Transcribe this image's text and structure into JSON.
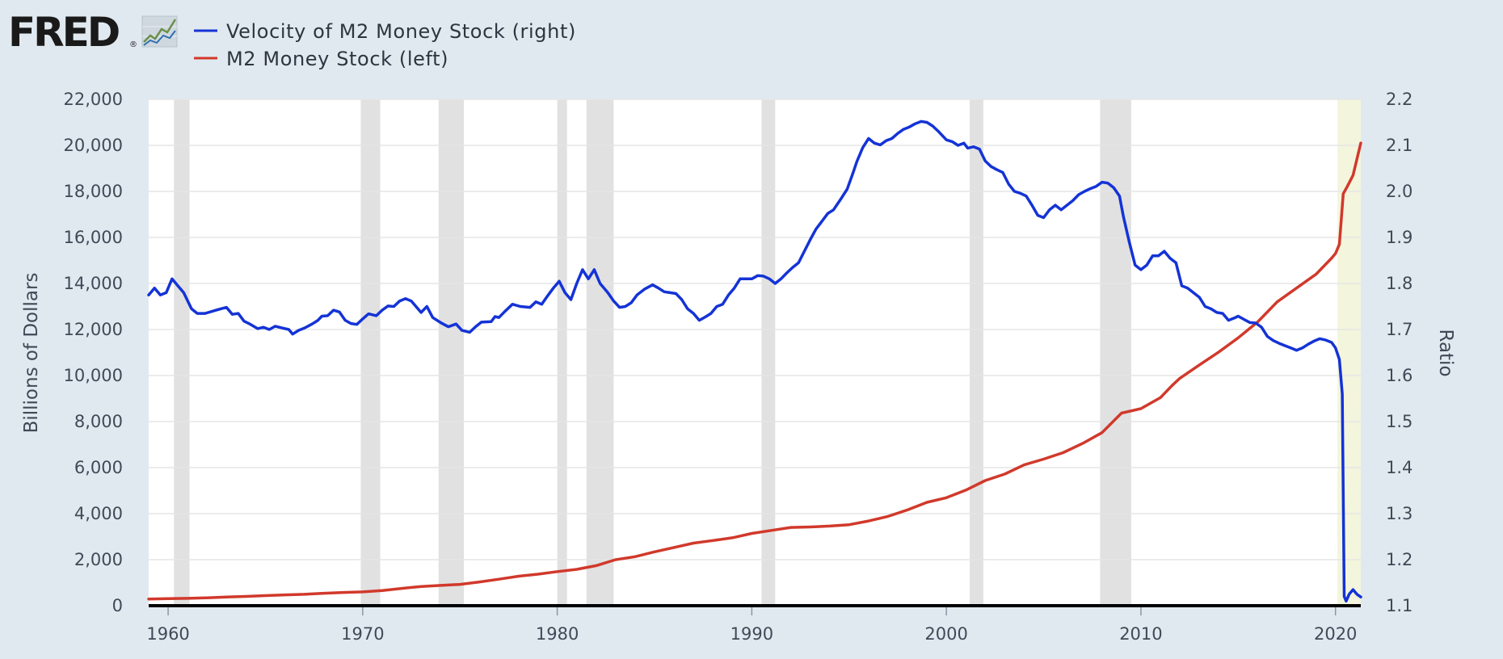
{
  "logo": {
    "text": "FRED",
    "mark": "®",
    "icon": "line-graph-icon"
  },
  "colors": {
    "background": "#e1e9f0",
    "plot_background": "#ffffff",
    "grid": "#e6e6e6",
    "recession": "#e1e1e1",
    "highlight": "#f3f5dc",
    "velocity": "#1433d6",
    "m2": "#d1392b",
    "text": "#3f4a57"
  },
  "chart_data": {
    "type": "line",
    "x_range": [
      1959,
      2021.3
    ],
    "x_ticks": [
      1960,
      1970,
      1980,
      1990,
      2000,
      2010,
      2020
    ],
    "left_axis": {
      "label": "Billions of Dollars",
      "range": [
        0,
        22000
      ],
      "ticks": [
        0,
        2000,
        4000,
        6000,
        8000,
        10000,
        12000,
        14000,
        16000,
        18000,
        20000,
        22000
      ]
    },
    "right_axis": {
      "label": "Ratio",
      "range": [
        1.1,
        2.2
      ],
      "ticks": [
        1.1,
        1.2,
        1.3,
        1.4,
        1.5,
        1.6,
        1.7,
        1.8,
        1.9,
        2.0,
        2.1,
        2.2
      ]
    },
    "legend": {
      "placement": "top-left"
    },
    "recessions": [
      [
        1960.3,
        1961.1
      ],
      [
        1969.9,
        1970.9
      ],
      [
        1973.9,
        1975.2
      ],
      [
        1980.0,
        1980.5
      ],
      [
        1981.5,
        1982.9
      ],
      [
        1990.5,
        1991.2
      ],
      [
        2001.2,
        2001.9
      ],
      [
        2007.9,
        2009.5
      ]
    ],
    "highlight_region": [
      2020.1,
      2021.3
    ],
    "series": [
      {
        "name": "Velocity of M2 Money Stock (right)",
        "axis": "right",
        "points": [
          [
            1959.0,
            1.775
          ],
          [
            1959.3,
            1.79
          ],
          [
            1959.6,
            1.775
          ],
          [
            1959.9,
            1.78
          ],
          [
            1960.2,
            1.81
          ],
          [
            1960.5,
            1.795
          ],
          [
            1960.8,
            1.78
          ],
          [
            1961.2,
            1.745
          ],
          [
            1961.5,
            1.735
          ],
          [
            1961.9,
            1.735
          ],
          [
            1962.3,
            1.74
          ],
          [
            1962.7,
            1.745
          ],
          [
            1963.0,
            1.748
          ],
          [
            1963.3,
            1.733
          ],
          [
            1963.6,
            1.735
          ],
          [
            1963.9,
            1.718
          ],
          [
            1964.2,
            1.712
          ],
          [
            1964.6,
            1.702
          ],
          [
            1964.9,
            1.705
          ],
          [
            1965.2,
            1.7
          ],
          [
            1965.5,
            1.707
          ],
          [
            1965.9,
            1.703
          ],
          [
            1966.2,
            1.7
          ],
          [
            1966.4,
            1.69
          ],
          [
            1966.7,
            1.698
          ],
          [
            1967.0,
            1.703
          ],
          [
            1967.4,
            1.712
          ],
          [
            1967.7,
            1.72
          ],
          [
            1967.9,
            1.729
          ],
          [
            1968.2,
            1.73
          ],
          [
            1968.5,
            1.742
          ],
          [
            1968.8,
            1.738
          ],
          [
            1969.1,
            1.72
          ],
          [
            1969.4,
            1.713
          ],
          [
            1969.7,
            1.711
          ],
          [
            1970.0,
            1.723
          ],
          [
            1970.3,
            1.734
          ],
          [
            1970.7,
            1.73
          ],
          [
            1971.0,
            1.742
          ],
          [
            1971.3,
            1.751
          ],
          [
            1971.6,
            1.75
          ],
          [
            1971.9,
            1.762
          ],
          [
            1972.2,
            1.767
          ],
          [
            1972.5,
            1.762
          ],
          [
            1973.0,
            1.737
          ],
          [
            1973.3,
            1.75
          ],
          [
            1973.6,
            1.726
          ],
          [
            1974.0,
            1.715
          ],
          [
            1974.4,
            1.706
          ],
          [
            1974.8,
            1.712
          ],
          [
            1975.1,
            1.698
          ],
          [
            1975.5,
            1.694
          ],
          [
            1975.8,
            1.706
          ],
          [
            1976.1,
            1.716
          ],
          [
            1976.6,
            1.717
          ],
          [
            1976.8,
            1.728
          ],
          [
            1977.0,
            1.726
          ],
          [
            1977.3,
            1.739
          ],
          [
            1977.7,
            1.755
          ],
          [
            1978.1,
            1.75
          ],
          [
            1978.6,
            1.748
          ],
          [
            1978.9,
            1.76
          ],
          [
            1979.2,
            1.755
          ],
          [
            1979.5,
            1.773
          ],
          [
            1979.8,
            1.79
          ],
          [
            1980.1,
            1.805
          ],
          [
            1980.4,
            1.78
          ],
          [
            1980.7,
            1.765
          ],
          [
            1981.0,
            1.8
          ],
          [
            1981.3,
            1.83
          ],
          [
            1981.6,
            1.81
          ],
          [
            1981.9,
            1.83
          ],
          [
            1982.2,
            1.8
          ],
          [
            1982.6,
            1.78
          ],
          [
            1982.9,
            1.762
          ],
          [
            1983.2,
            1.748
          ],
          [
            1983.5,
            1.75
          ],
          [
            1983.8,
            1.758
          ],
          [
            1984.1,
            1.775
          ],
          [
            1984.5,
            1.788
          ],
          [
            1984.9,
            1.797
          ],
          [
            1985.2,
            1.79
          ],
          [
            1985.5,
            1.782
          ],
          [
            1985.8,
            1.78
          ],
          [
            1986.1,
            1.778
          ],
          [
            1986.4,
            1.765
          ],
          [
            1986.7,
            1.745
          ],
          [
            1987.0,
            1.735
          ],
          [
            1987.3,
            1.72
          ],
          [
            1987.6,
            1.727
          ],
          [
            1987.9,
            1.735
          ],
          [
            1988.2,
            1.75
          ],
          [
            1988.5,
            1.755
          ],
          [
            1988.8,
            1.775
          ],
          [
            1989.1,
            1.79
          ],
          [
            1989.4,
            1.81
          ],
          [
            1989.7,
            1.81
          ],
          [
            1990.0,
            1.81
          ],
          [
            1990.3,
            1.817
          ],
          [
            1990.6,
            1.816
          ],
          [
            1990.9,
            1.81
          ],
          [
            1991.2,
            1.8
          ],
          [
            1991.5,
            1.81
          ],
          [
            1991.8,
            1.823
          ],
          [
            1992.1,
            1.835
          ],
          [
            1992.4,
            1.845
          ],
          [
            1992.7,
            1.87
          ],
          [
            1993.0,
            1.895
          ],
          [
            1993.3,
            1.918
          ],
          [
            1993.6,
            1.935
          ],
          [
            1993.9,
            1.952
          ],
          [
            1994.2,
            1.96
          ],
          [
            1994.6,
            1.985
          ],
          [
            1994.9,
            2.005
          ],
          [
            1995.2,
            2.04
          ],
          [
            1995.4,
            2.065
          ],
          [
            1995.7,
            2.095
          ],
          [
            1996.0,
            2.115
          ],
          [
            1996.3,
            2.105
          ],
          [
            1996.6,
            2.101
          ],
          [
            1996.9,
            2.11
          ],
          [
            1997.2,
            2.115
          ],
          [
            1997.5,
            2.126
          ],
          [
            1997.8,
            2.135
          ],
          [
            1998.1,
            2.14
          ],
          [
            1998.4,
            2.147
          ],
          [
            1998.7,
            2.152
          ],
          [
            1999.0,
            2.15
          ],
          [
            1999.3,
            2.142
          ],
          [
            1999.6,
            2.13
          ],
          [
            2000.0,
            2.112
          ],
          [
            2000.3,
            2.108
          ],
          [
            2000.6,
            2.1
          ],
          [
            2000.9,
            2.105
          ],
          [
            2001.1,
            2.094
          ],
          [
            2001.4,
            2.097
          ],
          [
            2001.7,
            2.092
          ],
          [
            2002.0,
            2.066
          ],
          [
            2002.3,
            2.054
          ],
          [
            2002.6,
            2.047
          ],
          [
            2002.9,
            2.041
          ],
          [
            2003.2,
            2.016
          ],
          [
            2003.5,
            2.0
          ],
          [
            2003.8,
            1.996
          ],
          [
            2004.1,
            1.99
          ],
          [
            2004.4,
            1.97
          ],
          [
            2004.7,
            1.948
          ],
          [
            2005.0,
            1.943
          ],
          [
            2005.3,
            1.96
          ],
          [
            2005.6,
            1.97
          ],
          [
            2005.9,
            1.96
          ],
          [
            2006.2,
            1.97
          ],
          [
            2006.5,
            1.98
          ],
          [
            2006.8,
            1.993
          ],
          [
            2007.1,
            2.0
          ],
          [
            2007.4,
            2.006
          ],
          [
            2007.7,
            2.011
          ],
          [
            2008.0,
            2.02
          ],
          [
            2008.3,
            2.018
          ],
          [
            2008.6,
            2.008
          ],
          [
            2008.9,
            1.99
          ],
          [
            2009.1,
            1.945
          ],
          [
            2009.4,
            1.89
          ],
          [
            2009.7,
            1.84
          ],
          [
            2010.0,
            1.83
          ],
          [
            2010.3,
            1.84
          ],
          [
            2010.6,
            1.86
          ],
          [
            2010.9,
            1.86
          ],
          [
            2011.2,
            1.87
          ],
          [
            2011.5,
            1.855
          ],
          [
            2011.8,
            1.845
          ],
          [
            2012.1,
            1.795
          ],
          [
            2012.4,
            1.79
          ],
          [
            2012.7,
            1.78
          ],
          [
            2013.0,
            1.77
          ],
          [
            2013.3,
            1.75
          ],
          [
            2013.6,
            1.745
          ],
          [
            2013.9,
            1.737
          ],
          [
            2014.2,
            1.735
          ],
          [
            2014.5,
            1.72
          ],
          [
            2014.8,
            1.725
          ],
          [
            2015.0,
            1.729
          ],
          [
            2015.3,
            1.722
          ],
          [
            2015.6,
            1.715
          ],
          [
            2015.9,
            1.714
          ],
          [
            2016.2,
            1.705
          ],
          [
            2016.5,
            1.685
          ],
          [
            2016.8,
            1.676
          ],
          [
            2017.1,
            1.67
          ],
          [
            2017.4,
            1.665
          ],
          [
            2017.7,
            1.66
          ],
          [
            2018.0,
            1.655
          ],
          [
            2018.3,
            1.66
          ],
          [
            2018.6,
            1.668
          ],
          [
            2018.9,
            1.675
          ],
          [
            2019.2,
            1.68
          ],
          [
            2019.5,
            1.677
          ],
          [
            2019.8,
            1.672
          ],
          [
            2020.0,
            1.66
          ],
          [
            2020.2,
            1.635
          ],
          [
            2020.35,
            1.56
          ],
          [
            2020.45,
            1.12
          ],
          [
            2020.55,
            1.11
          ],
          [
            2020.7,
            1.125
          ],
          [
            2020.9,
            1.135
          ],
          [
            2021.1,
            1.125
          ],
          [
            2021.3,
            1.119
          ]
        ]
      },
      {
        "name": "M2 Money Stock (left)",
        "axis": "left",
        "points": [
          [
            1959.0,
            290
          ],
          [
            1960.0,
            305
          ],
          [
            1961.0,
            320
          ],
          [
            1962.0,
            345
          ],
          [
            1963.0,
            375
          ],
          [
            1964.0,
            405
          ],
          [
            1965.0,
            440
          ],
          [
            1966.0,
            470
          ],
          [
            1967.0,
            495
          ],
          [
            1968.0,
            540
          ],
          [
            1969.0,
            575
          ],
          [
            1970.0,
            600
          ],
          [
            1971.0,
            660
          ],
          [
            1972.0,
            750
          ],
          [
            1973.0,
            835
          ],
          [
            1974.0,
            880
          ],
          [
            1975.0,
            925
          ],
          [
            1976.0,
            1030
          ],
          [
            1977.0,
            1150
          ],
          [
            1978.0,
            1280
          ],
          [
            1979.0,
            1370
          ],
          [
            1980.0,
            1480
          ],
          [
            1981.0,
            1580
          ],
          [
            1982.0,
            1740
          ],
          [
            1983.0,
            2000
          ],
          [
            1984.0,
            2130
          ],
          [
            1985.0,
            2340
          ],
          [
            1986.0,
            2530
          ],
          [
            1987.0,
            2720
          ],
          [
            1988.0,
            2830
          ],
          [
            1989.0,
            2950
          ],
          [
            1990.0,
            3140
          ],
          [
            1991.0,
            3270
          ],
          [
            1992.0,
            3400
          ],
          [
            1993.0,
            3420
          ],
          [
            1994.0,
            3460
          ],
          [
            1995.0,
            3520
          ],
          [
            1996.0,
            3680
          ],
          [
            1997.0,
            3880
          ],
          [
            1998.0,
            4160
          ],
          [
            1999.0,
            4490
          ],
          [
            2000.0,
            4690
          ],
          [
            2001.0,
            5020
          ],
          [
            2002.0,
            5440
          ],
          [
            2003.0,
            5720
          ],
          [
            2004.0,
            6120
          ],
          [
            2005.0,
            6370
          ],
          [
            2006.0,
            6650
          ],
          [
            2007.0,
            7050
          ],
          [
            2008.0,
            7520
          ],
          [
            2009.0,
            8370
          ],
          [
            2010.0,
            8560
          ],
          [
            2011.0,
            9040
          ],
          [
            2011.6,
            9570
          ],
          [
            2012.0,
            9880
          ],
          [
            2013.0,
            10460
          ],
          [
            2014.0,
            11020
          ],
          [
            2015.0,
            11640
          ],
          [
            2016.0,
            12330
          ],
          [
            2017.0,
            13200
          ],
          [
            2018.0,
            13800
          ],
          [
            2019.0,
            14400
          ],
          [
            2019.8,
            15100
          ],
          [
            2020.0,
            15300
          ],
          [
            2020.2,
            15700
          ],
          [
            2020.4,
            17900
          ],
          [
            2020.6,
            18200
          ],
          [
            2020.9,
            18700
          ],
          [
            2021.1,
            19400
          ],
          [
            2021.3,
            20100
          ]
        ]
      }
    ]
  }
}
